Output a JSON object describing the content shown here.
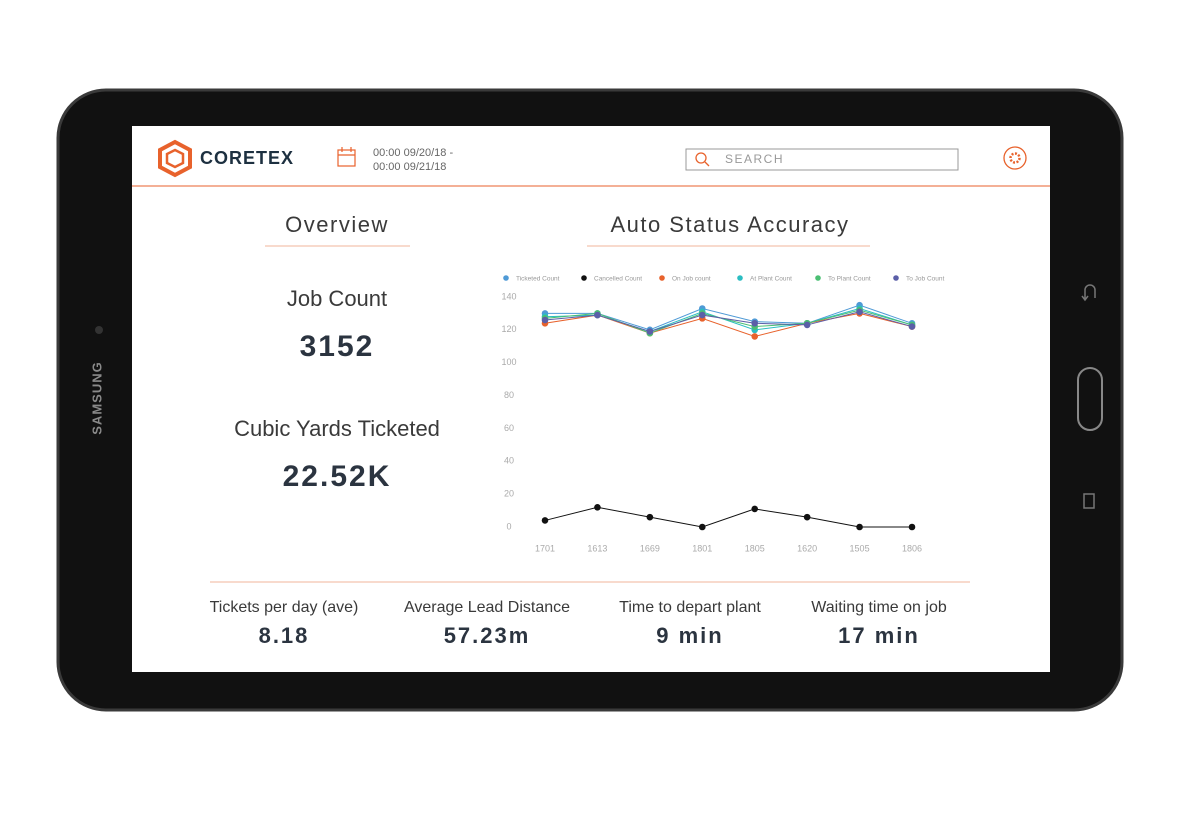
{
  "device": {
    "brand": "SAMSUNG"
  },
  "header": {
    "logo": "CORETEX",
    "date_from": "00:00 09/20/18 -",
    "date_to": "00:00 09/21/18",
    "search_placeholder": "SEARCH"
  },
  "overview": {
    "title": "Overview",
    "metrics": [
      {
        "label": "Job Count",
        "value": "3152"
      },
      {
        "label": "Cubic Yards Ticketed",
        "value": "22.52K"
      }
    ]
  },
  "chart": {
    "type": "line",
    "title": "Auto Status Accuracy",
    "categories": [
      "1701",
      "1613",
      "1669",
      "1801",
      "1805",
      "1620",
      "1505",
      "1806"
    ],
    "series": [
      {
        "name": "Ticketed Count",
        "color": "#4f9ad6",
        "values": [
          130,
          130,
          120,
          133,
          125,
          124,
          135,
          124
        ]
      },
      {
        "name": "Cancelled Count",
        "color": "#111111",
        "values": [
          4,
          12,
          6,
          0,
          11,
          6,
          0,
          0
        ]
      },
      {
        "name": "On Job count",
        "color": "#e8622c",
        "values": [
          124,
          129,
          118,
          127,
          116,
          124,
          130,
          122
        ]
      },
      {
        "name": "At Plant Count",
        "color": "#2bbdc2",
        "values": [
          128,
          129,
          119,
          131,
          120,
          124,
          133,
          123
        ]
      },
      {
        "name": "To Plant Count",
        "color": "#4bbf73",
        "values": [
          127,
          130,
          118,
          130,
          122,
          124,
          132,
          123
        ]
      },
      {
        "name": "To Job Count",
        "color": "#5b5fa8",
        "values": [
          126,
          129,
          119,
          129,
          124,
          123,
          131,
          122
        ]
      }
    ],
    "ylim": [
      0,
      140
    ],
    "yticks": [
      0,
      20,
      40,
      60,
      80,
      100,
      120,
      140
    ],
    "legend": "top"
  },
  "stats": [
    {
      "label": "Tickets per day (ave)",
      "value": "8.18"
    },
    {
      "label": "Average Lead Distance",
      "value": "57.23m"
    },
    {
      "label": "Time to depart plant",
      "value": "9 min"
    },
    {
      "label": "Waiting time on job",
      "value": "17 min"
    }
  ]
}
